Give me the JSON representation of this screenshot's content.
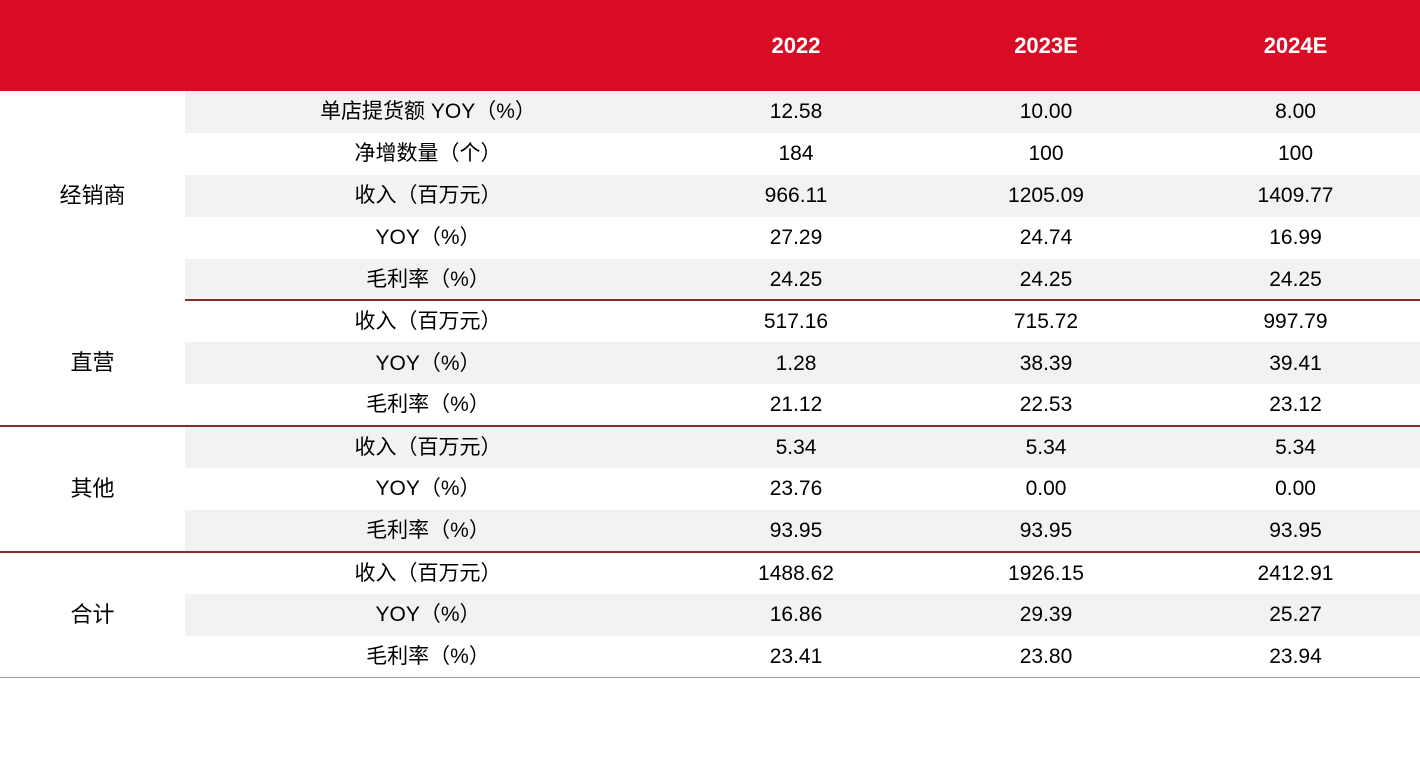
{
  "header": {
    "col_segment": "",
    "col_metric": "",
    "years": [
      "2022",
      "2023E",
      "2024E"
    ]
  },
  "groups": [
    {
      "segment": "经销商",
      "rows": [
        {
          "metric": "单店提货额 YOY（%）",
          "values": [
            "12.58",
            "10.00",
            "8.00"
          ]
        },
        {
          "metric": "净增数量（个）",
          "values": [
            "184",
            "100",
            "100"
          ]
        },
        {
          "metric": "收入（百万元）",
          "values": [
            "966.11",
            "1205.09",
            "1409.77"
          ]
        },
        {
          "metric": "YOY（%）",
          "values": [
            "27.29",
            "24.74",
            "16.99"
          ]
        },
        {
          "metric": "毛利率（%）",
          "values": [
            "24.25",
            "24.25",
            "24.25"
          ]
        }
      ]
    },
    {
      "segment": "直营",
      "rows": [
        {
          "metric": "收入（百万元）",
          "values": [
            "517.16",
            "715.72",
            "997.79"
          ]
        },
        {
          "metric": "YOY（%）",
          "values": [
            "1.28",
            "38.39",
            "39.41"
          ]
        },
        {
          "metric": "毛利率（%）",
          "values": [
            "21.12",
            "22.53",
            "23.12"
          ]
        }
      ]
    },
    {
      "segment": "其他",
      "rows": [
        {
          "metric": "收入（百万元）",
          "values": [
            "5.34",
            "5.34",
            "5.34"
          ]
        },
        {
          "metric": "YOY（%）",
          "values": [
            "23.76",
            "0.00",
            "0.00"
          ]
        },
        {
          "metric": "毛利率（%）",
          "values": [
            "93.95",
            "93.95",
            "93.95"
          ]
        }
      ]
    },
    {
      "segment": "合计",
      "rows": [
        {
          "metric": "收入（百万元）",
          "values": [
            "1488.62",
            "1926.15",
            "2412.91"
          ]
        },
        {
          "metric": "YOY（%）",
          "values": [
            "16.86",
            "29.39",
            "25.27"
          ]
        },
        {
          "metric": "毛利率（%）",
          "values": [
            "23.41",
            "23.80",
            "23.94"
          ]
        }
      ]
    }
  ],
  "colors": {
    "header_bg": "#d80c24",
    "row_shade": "#f2f2f2",
    "group_rule": "#8e2b2b"
  }
}
